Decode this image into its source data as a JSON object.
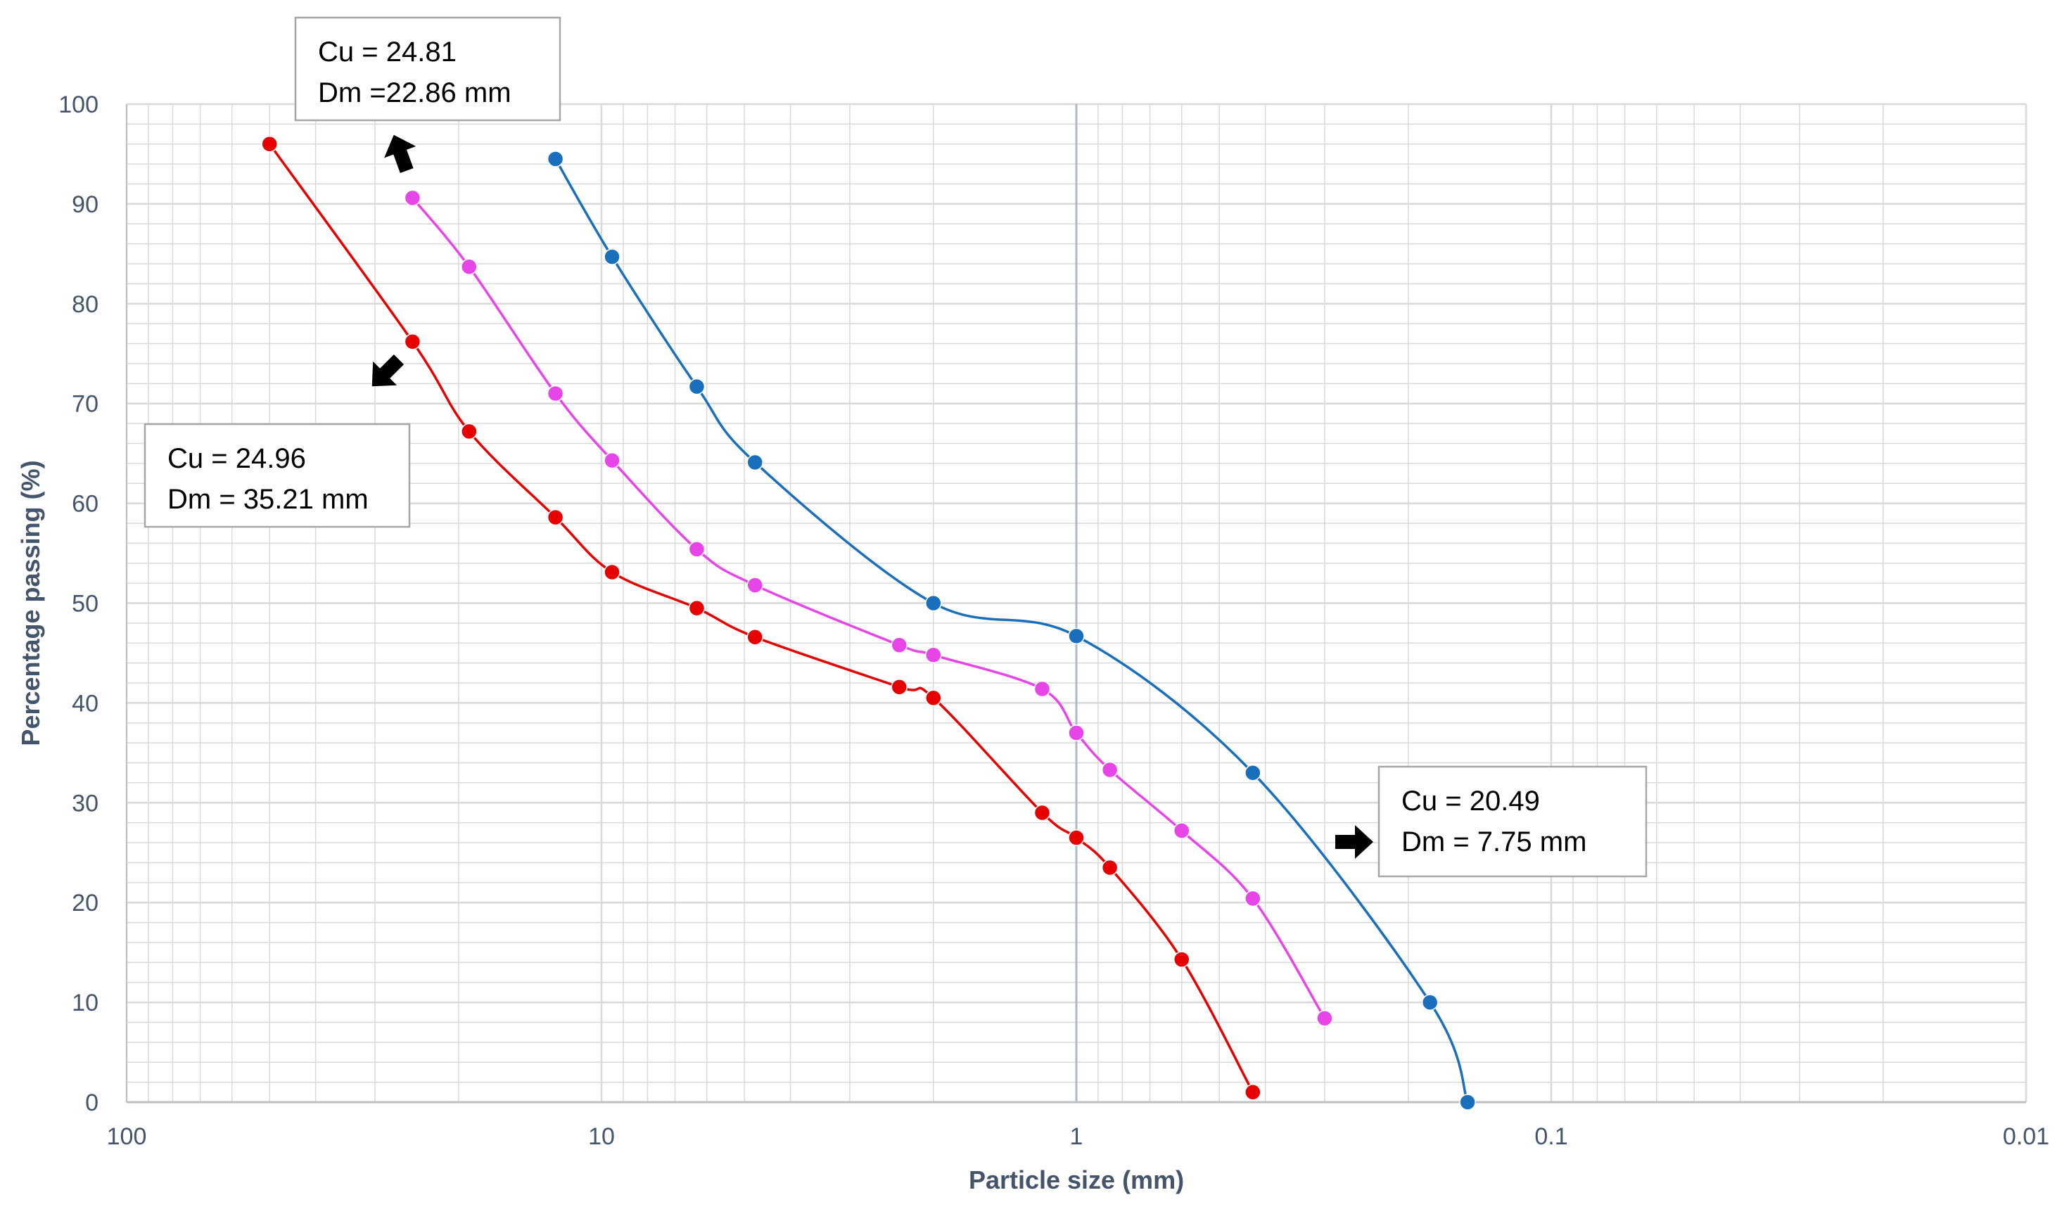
{
  "chart_data": {
    "type": "line",
    "title": "",
    "xlabel": "Particle size (mm)",
    "ylabel": "Percentage passing (%)",
    "x_scale": "log",
    "x_reversed": true,
    "xlim": [
      100,
      0.01
    ],
    "ylim": [
      0,
      100
    ],
    "x_ticks": [
      100,
      10,
      1,
      0.1,
      0.01
    ],
    "x_tick_labels": [
      "100",
      "10",
      "1",
      "0.1",
      "0.01"
    ],
    "y_ticks": [
      0,
      10,
      20,
      30,
      40,
      50,
      60,
      70,
      80,
      90,
      100
    ],
    "y_tick_labels": [
      "0",
      "10",
      "20",
      "30",
      "40",
      "50",
      "60",
      "70",
      "80",
      "90",
      "100"
    ],
    "grid": true,
    "legend": "none",
    "series": [
      {
        "color": "#e60000",
        "points": [
          {
            "x": 50,
            "y": 96.0
          },
          {
            "x": 25,
            "y": 76.2
          },
          {
            "x": 19,
            "y": 67.2
          },
          {
            "x": 12.5,
            "y": 58.6
          },
          {
            "x": 9.5,
            "y": 53.1
          },
          {
            "x": 6.3,
            "y": 49.5
          },
          {
            "x": 4.75,
            "y": 46.6
          },
          {
            "x": 2.36,
            "y": 41.6
          },
          {
            "x": 2.0,
            "y": 40.5
          },
          {
            "x": 1.18,
            "y": 29.0
          },
          {
            "x": 1.0,
            "y": 26.5
          },
          {
            "x": 0.85,
            "y": 23.5
          },
          {
            "x": 0.6,
            "y": 14.3
          },
          {
            "x": 0.425,
            "y": 1.0
          }
        ]
      },
      {
        "color": "#e845e8",
        "points": [
          {
            "x": 25,
            "y": 90.6
          },
          {
            "x": 19,
            "y": 83.7
          },
          {
            "x": 12.5,
            "y": 71.0
          },
          {
            "x": 9.5,
            "y": 64.3
          },
          {
            "x": 6.3,
            "y": 55.4
          },
          {
            "x": 4.75,
            "y": 51.8
          },
          {
            "x": 2.36,
            "y": 45.8
          },
          {
            "x": 2.0,
            "y": 44.8
          },
          {
            "x": 1.18,
            "y": 41.4
          },
          {
            "x": 1.0,
            "y": 37.0
          },
          {
            "x": 0.85,
            "y": 33.3
          },
          {
            "x": 0.6,
            "y": 27.2
          },
          {
            "x": 0.425,
            "y": 20.4
          },
          {
            "x": 0.3,
            "y": 8.4
          }
        ]
      },
      {
        "color": "#1a6fbd",
        "points": [
          {
            "x": 12.5,
            "y": 94.5
          },
          {
            "x": 9.5,
            "y": 84.7
          },
          {
            "x": 6.3,
            "y": 71.7
          },
          {
            "x": 4.75,
            "y": 64.1
          },
          {
            "x": 2.0,
            "y": 50.0
          },
          {
            "x": 1.0,
            "y": 46.7
          },
          {
            "x": 0.425,
            "y": 33.0
          },
          {
            "x": 0.18,
            "y": 10.0
          },
          {
            "x": 0.15,
            "y": 0.0
          }
        ]
      }
    ],
    "annotations": [
      {
        "lines": [
          "Cu = 24.81",
          "Dm =22.86 mm"
        ]
      },
      {
        "lines": [
          "Cu = 24.96",
          "Dm = 35.21 mm"
        ]
      },
      {
        "lines": [
          "Cu = 20.49",
          "Dm = 7.75 mm"
        ]
      }
    ],
    "colors": {
      "grid": "#d9d9d9",
      "axis": "#bfbfbf",
      "reference_line": "#adb9ca",
      "text": "#44546a"
    }
  }
}
